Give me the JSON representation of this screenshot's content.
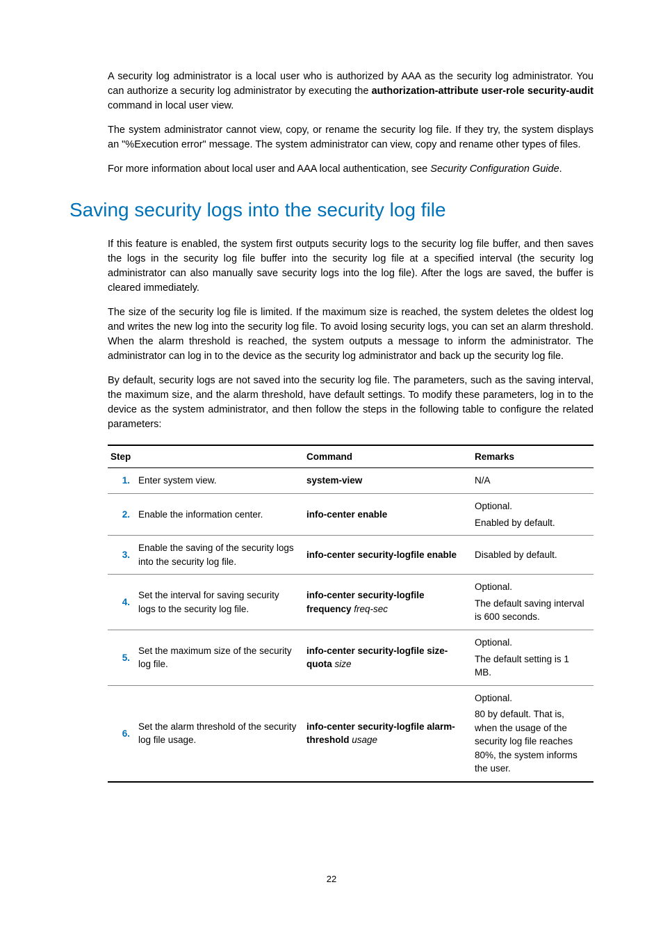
{
  "intro": {
    "p1_a": "A security log administrator is a local user who is authorized by AAA as the security log administrator. You can authorize a security log administrator by executing the ",
    "p1_bold": "authorization-attribute user-role security-audit",
    "p1_b": " command in local user view.",
    "p2": "The system administrator cannot view, copy, or rename the security log file. If they try, the system displays an \"%Execution error\" message. The system administrator can view, copy and rename other types of files.",
    "p3_a": "For more information about local user and AAA local authentication, see ",
    "p3_ital": "Security Configuration Guide",
    "p3_b": "."
  },
  "heading": "Saving security logs into the security log file",
  "section": {
    "p1": "If this feature is enabled, the system first outputs security logs to the security log file buffer, and then saves the logs in the security log file buffer into the security log file at a specified interval (the security log administrator can also manually save security logs into the log file). After the logs are saved, the buffer is cleared immediately.",
    "p2": "The size of the security log file is limited. If the maximum size is reached, the system deletes the oldest log and writes the new log into the security log file. To avoid losing security logs, you can set an alarm threshold. When the alarm threshold is reached, the system outputs a message to inform the administrator. The administrator can log in to the device as the security log administrator and back up the security log file.",
    "p3": "By default, security logs are not saved into the security log file. The parameters, such as the saving interval, the maximum size, and the alarm threshold, have default settings. To modify these parameters, log in to the device as the system administrator, and then follow the steps in the following table to configure the related parameters:"
  },
  "table": {
    "headers": {
      "step": "Step",
      "command": "Command",
      "remarks": "Remarks"
    },
    "rows": [
      {
        "num": "1.",
        "step": "Enter system view.",
        "cmd_bold": "system-view",
        "cmd_ital": "",
        "remarks": [
          "N/A"
        ]
      },
      {
        "num": "2.",
        "step": "Enable the information center.",
        "cmd_bold": "info-center enable",
        "cmd_ital": "",
        "remarks": [
          "Optional.",
          "Enabled by default."
        ]
      },
      {
        "num": "3.",
        "step": "Enable the saving of the security logs into the security log file.",
        "cmd_bold": "info-center security-logfile enable",
        "cmd_ital": "",
        "remarks": [
          "Disabled by default."
        ]
      },
      {
        "num": "4.",
        "step": "Set the interval for saving security logs to the security log file.",
        "cmd_bold": "info-center security-logfile frequency",
        "cmd_ital": " freq-sec",
        "remarks": [
          "Optional.",
          "The default saving interval is 600 seconds."
        ]
      },
      {
        "num": "5.",
        "step": "Set the maximum size of the security log file.",
        "cmd_bold": "info-center security-logfile size-quota",
        "cmd_ital": " size",
        "remarks": [
          "Optional.",
          "The default setting is 1 MB."
        ]
      },
      {
        "num": "6.",
        "step": "Set the alarm threshold of the security log file usage.",
        "cmd_bold": "info-center security-logfile alarm-threshold",
        "cmd_ital": " usage",
        "remarks": [
          "Optional.",
          "80 by default. That is, when the usage of the security log file reaches 80%, the system informs the user."
        ]
      }
    ]
  },
  "page_number": "22",
  "colors": {
    "heading_blue": "#0072b8",
    "stepnum_blue": "#0070b8",
    "text_black": "#000000",
    "background": "#ffffff"
  }
}
